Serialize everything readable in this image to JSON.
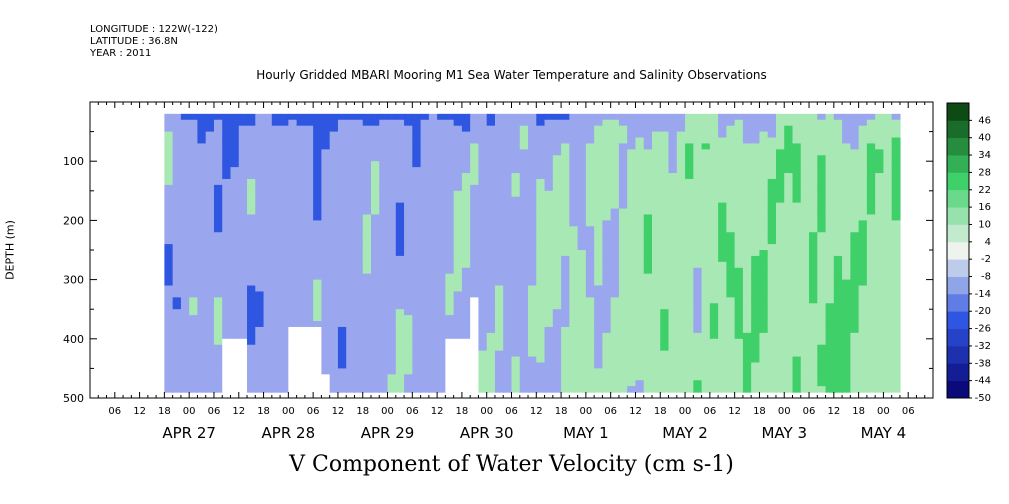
{
  "header": {
    "longitude": "LONGITUDE : 122W(-122)",
    "latitude": "LATITUDE : 36.8N",
    "year": "YEAR : 2011"
  },
  "chart_data": {
    "type": "heatmap",
    "title": "Hourly Gridded MBARI Mooring M1 Sea Water Temperature and Salinity Observations",
    "xlabel": "",
    "ylabel": "DEPTH (m)",
    "bottom_title": "V Component of Water Velocity (cm s-1)",
    "y_range": [
      500,
      0
    ],
    "y_axis_inverted": true,
    "y_ticks": [
      100,
      200,
      300,
      400,
      500
    ],
    "y_data_range": [
      20,
      490
    ],
    "x_range_hours": [
      -18,
      186
    ],
    "x_data_range_hours": [
      0,
      178
    ],
    "x_hour_ticks": [
      "06",
      "12",
      "18",
      "00",
      "06",
      "12",
      "18",
      "00",
      "06",
      "12",
      "18",
      "00",
      "06",
      "12",
      "18",
      "00",
      "06",
      "12",
      "18",
      "00",
      "06",
      "12",
      "18",
      "00",
      "06",
      "12",
      "18",
      "00",
      "06",
      "12",
      "18",
      "00",
      "06"
    ],
    "x_day_labels": [
      "APR 27",
      "APR 28",
      "APR 29",
      "APR 30",
      "MAY 1",
      "MAY 2",
      "MAY 3",
      "MAY 4"
    ],
    "colorbar": {
      "levels": [
        -50,
        -44,
        -38,
        -32,
        -26,
        -20,
        -14,
        -8,
        -2,
        4,
        10,
        16,
        22,
        28,
        34,
        40,
        46
      ],
      "labels": [
        "46",
        "40",
        "34",
        "28",
        "22",
        "16",
        "10",
        "4",
        "-2",
        "-8",
        "-14",
        "-20",
        "-26",
        "-32",
        "-38",
        "-44",
        "-50"
      ],
      "color_low": "#0a0a7a",
      "color_mid": "#eef3ee",
      "color_high": "#0d4a14"
    },
    "colors": {
      "strong_negative": "#2f56e0",
      "weak_negative": "#9aa6ee",
      "weak_positive": "#a8e8b4",
      "strong_positive": "#3fd06a",
      "missing": "#ffffff"
    },
    "summary_pattern": [
      {
        "period": "APR 27 – APR 30",
        "values_cm_s": "mostly -2 to -20"
      },
      {
        "period": "surface 20-60 m",
        "values_cm_s": "-14 to -26"
      },
      {
        "period": "MAY 1 – MAY 4",
        "values_cm_s": "mostly 4 to 16"
      }
    ]
  }
}
